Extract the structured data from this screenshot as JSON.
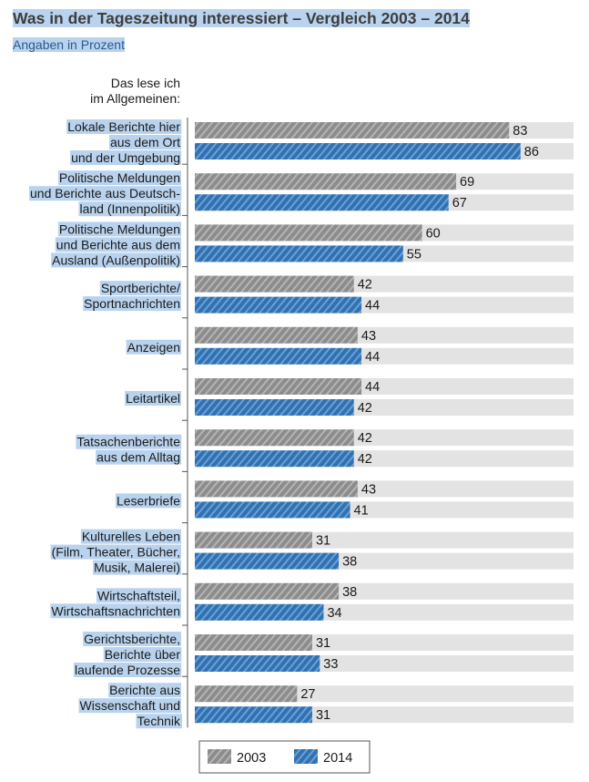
{
  "header": {
    "title": "Was in der Tageszeitung interessiert – Vergleich 2003 – 2014",
    "subtitle": "Angaben in Prozent",
    "column_label": [
      "Das lese ich",
      "im Allgemeinen:"
    ]
  },
  "colors": {
    "series_2003": "#8c8c8c",
    "series_2014": "#2f72b4",
    "track": "#e3e3e3",
    "label_highlight": "#b9d3ee"
  },
  "chart_data": {
    "type": "bar",
    "orientation": "horizontal",
    "title": "Was in der Tageszeitung interessiert – Vergleich 2003 – 2014",
    "subtitle": "Angaben in Prozent",
    "xlim": [
      0,
      100
    ],
    "grid": false,
    "legend_position": "bottom",
    "categories": [
      [
        "Lokale Berichte hier",
        "aus dem Ort",
        "und der Umgebung"
      ],
      [
        "Politische Meldungen",
        "und Berichte aus Deutsch-",
        "land (Innenpolitik)"
      ],
      [
        "Politische Meldungen",
        "und Berichte aus dem",
        "Ausland (Außenpolitik)"
      ],
      [
        "Sportberichte/",
        "Sportnachrichten"
      ],
      [
        "Anzeigen"
      ],
      [
        "Leitartikel"
      ],
      [
        "Tatsachenberichte",
        "aus dem Alltag"
      ],
      [
        "Leserbriefe"
      ],
      [
        "Kulturelles Leben",
        "(Film, Theater, Bücher,",
        "Musik, Malerei)"
      ],
      [
        "Wirtschaftsteil,",
        "Wirtschaftsnachrichten"
      ],
      [
        "Gerichtsberichte,",
        "Berichte über",
        "laufende Prozesse"
      ],
      [
        "Berichte aus",
        "Wissenschaft und",
        "Technik"
      ]
    ],
    "series": [
      {
        "name": "2003",
        "values": [
          83,
          69,
          60,
          42,
          43,
          44,
          42,
          43,
          31,
          38,
          31,
          27
        ]
      },
      {
        "name": "2014",
        "values": [
          86,
          67,
          55,
          44,
          44,
          42,
          42,
          41,
          38,
          34,
          33,
          31
        ]
      }
    ]
  }
}
